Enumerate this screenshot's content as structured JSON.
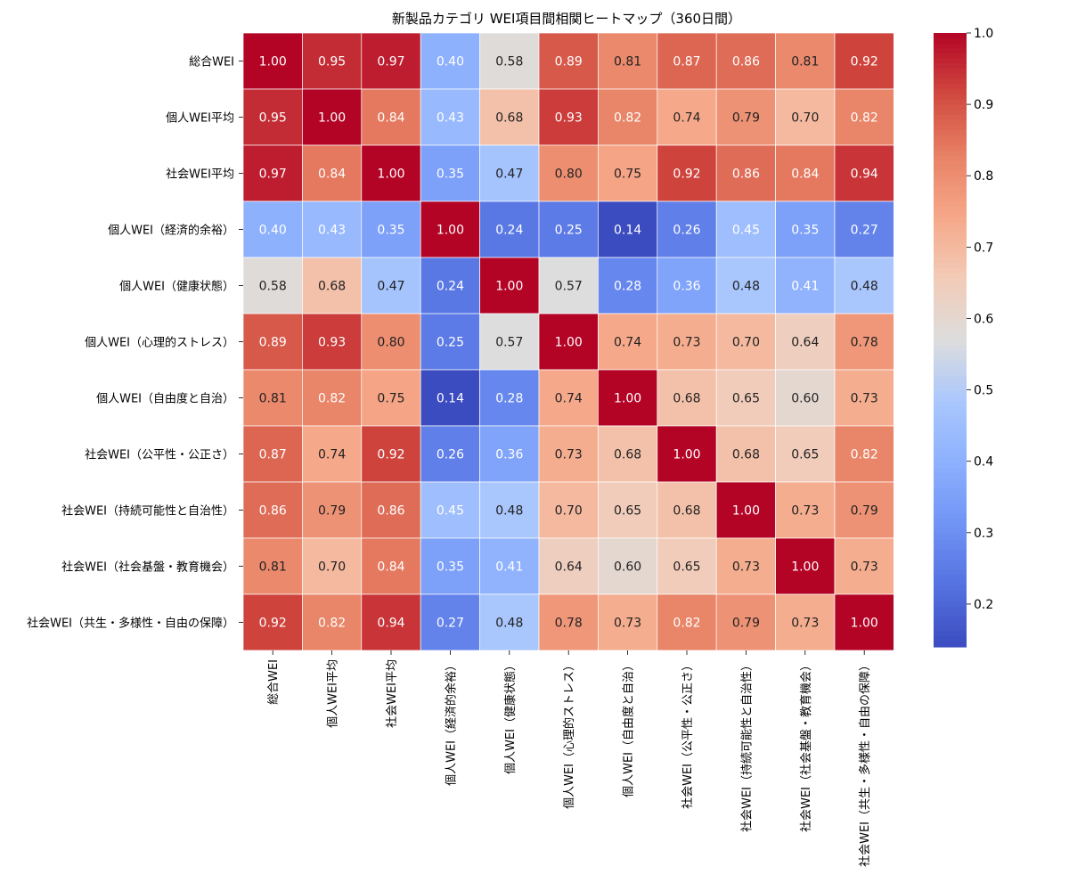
{
  "chart_data": {
    "type": "heatmap",
    "title": "新製品カテゴリ WEI項目間相関ヒートマップ（360日間）",
    "xlabel": "",
    "ylabel": "",
    "colormap": "coolwarm",
    "vmin": 0.14,
    "vmax": 1.0,
    "colorbar_ticks": [
      "0.2",
      "0.3",
      "0.4",
      "0.5",
      "0.6",
      "0.7",
      "0.8",
      "0.9",
      "1.0"
    ],
    "colorbar_tick_values": [
      0.2,
      0.3,
      0.4,
      0.5,
      0.6,
      0.7,
      0.8,
      0.9,
      1.0
    ],
    "row_labels": [
      "総合WEI",
      "個人WEI平均",
      "社会WEI平均",
      "個人WEI（経済的余裕）",
      "個人WEI（健康状態）",
      "個人WEI（心理的ストレス）",
      "個人WEI（自由度と自治）",
      "社会WEI（公平性・公正さ）",
      "社会WEI（持続可能性と自治性）",
      "社会WEI（社会基盤・教育機会）",
      "社会WEI（共生・多様性・自由の保障）"
    ],
    "col_labels": [
      "総合WEI",
      "個人WEI平均",
      "社会WEI平均",
      "個人WEI（経済的余裕）",
      "個人WEI（健康状態）",
      "個人WEI（心理的ストレス）",
      "個人WEI（自由度と自治）",
      "社会WEI（公平性・公正さ）",
      "社会WEI（持続可能性と自治性）",
      "社会WEI（社会基盤・教育機会）",
      "社会WEI（共生・多様性・自由の保障）"
    ],
    "values": [
      [
        1.0,
        0.95,
        0.97,
        0.4,
        0.58,
        0.89,
        0.81,
        0.87,
        0.86,
        0.81,
        0.92
      ],
      [
        0.95,
        1.0,
        0.84,
        0.43,
        0.68,
        0.93,
        0.82,
        0.74,
        0.79,
        0.7,
        0.82
      ],
      [
        0.97,
        0.84,
        1.0,
        0.35,
        0.47,
        0.8,
        0.75,
        0.92,
        0.86,
        0.84,
        0.94
      ],
      [
        0.4,
        0.43,
        0.35,
        1.0,
        0.24,
        0.25,
        0.14,
        0.26,
        0.45,
        0.35,
        0.27
      ],
      [
        0.58,
        0.68,
        0.47,
        0.24,
        1.0,
        0.57,
        0.28,
        0.36,
        0.48,
        0.41,
        0.48
      ],
      [
        0.89,
        0.93,
        0.8,
        0.25,
        0.57,
        1.0,
        0.74,
        0.73,
        0.7,
        0.64,
        0.78
      ],
      [
        0.81,
        0.82,
        0.75,
        0.14,
        0.28,
        0.74,
        1.0,
        0.68,
        0.65,
        0.6,
        0.73
      ],
      [
        0.87,
        0.74,
        0.92,
        0.26,
        0.36,
        0.73,
        0.68,
        1.0,
        0.68,
        0.65,
        0.82
      ],
      [
        0.86,
        0.79,
        0.86,
        0.45,
        0.48,
        0.7,
        0.65,
        0.68,
        1.0,
        0.73,
        0.79
      ],
      [
        0.81,
        0.7,
        0.84,
        0.35,
        0.41,
        0.64,
        0.6,
        0.65,
        0.73,
        1.0,
        0.73
      ],
      [
        0.92,
        0.82,
        0.94,
        0.27,
        0.48,
        0.78,
        0.73,
        0.82,
        0.79,
        0.73,
        1.0
      ]
    ],
    "value_format": "0.00"
  }
}
